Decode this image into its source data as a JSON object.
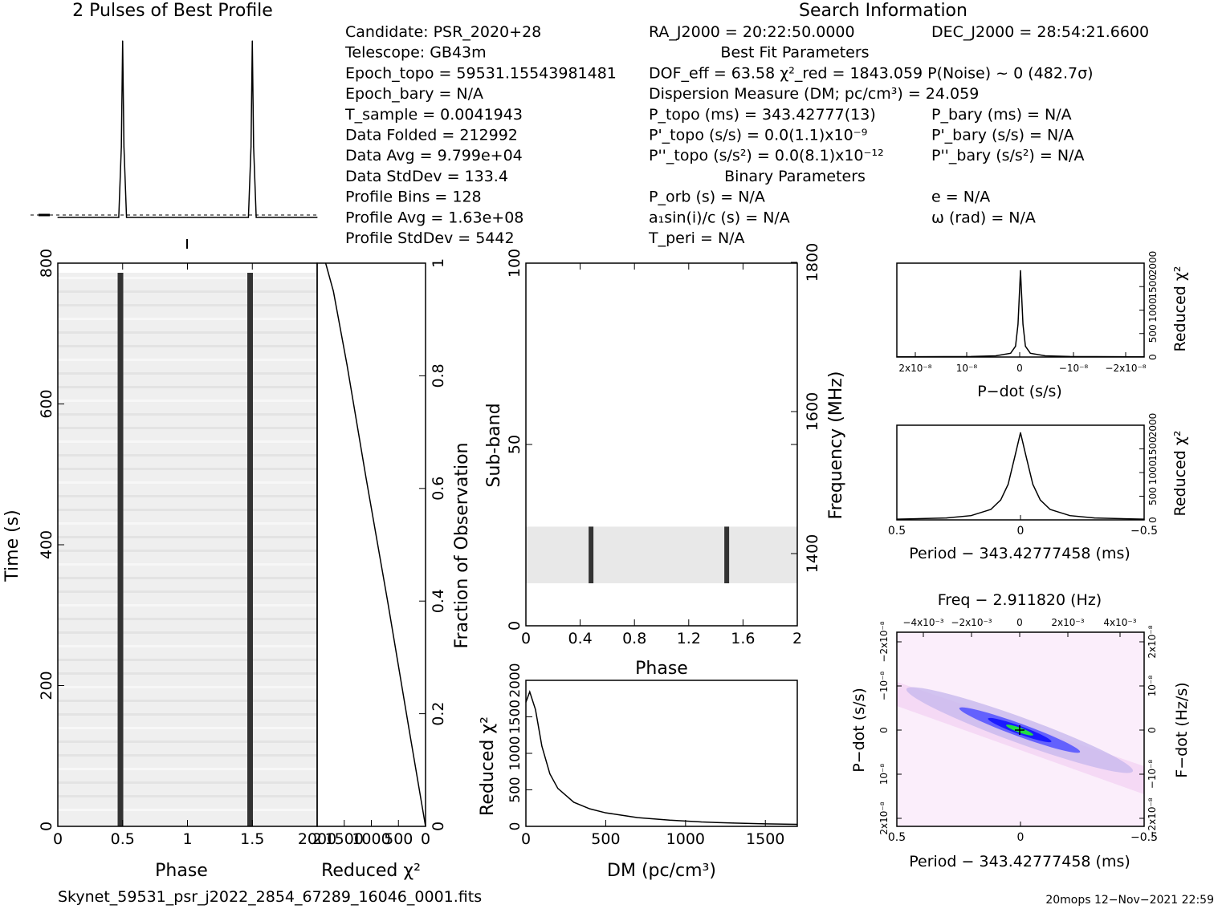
{
  "header": {
    "profile_title": "2 Pulses of Best Profile",
    "search_title": "Search Information",
    "filename": "Skynet_59531_psr_j2022_2854_67289_16046_0001.fits",
    "footer_right": "20mops  12−Nov−2021 22:59"
  },
  "info_rows": [
    [
      "Candidate:  PSR_2020+28",
      "RA_J2000 = 20:22:50.0000",
      "DEC_J2000 = 28:54:21.6600"
    ],
    [
      "Telescope:  GB43m",
      "Best Fit Parameters",
      ""
    ],
    [
      "Epoch_topo = 59531.15543981481",
      "DOF_eff = 63.58  χ²_red = 1843.059  P(Noise) ~ 0  (482.7σ)",
      ""
    ],
    [
      "Epoch_bary = N/A",
      "Dispersion Measure (DM; pc/cm³) = 24.059",
      ""
    ],
    [
      "T_sample  =  0.0041943",
      "P_topo (ms) =  343.42777(13)",
      "P_bary (ms) = N/A"
    ],
    [
      "Data Folded  =  212992",
      "P'_topo (s/s) = 0.0(1.1)x10⁻⁹",
      "P'_bary (s/s) = N/A"
    ],
    [
      "Data Avg  =  9.799e+04",
      "P''_topo (s/s²) = 0.0(8.1)x10⁻¹²",
      "P''_bary (s/s²) = N/A"
    ],
    [
      "Data StdDev  =  133.4",
      "Binary Parameters",
      ""
    ],
    [
      "Profile Bins  =  128",
      "P_orb (s) = N/A",
      "e = N/A"
    ],
    [
      "Profile Avg  =  1.63e+08",
      "a₁sin(i)/c (s) = N/A",
      "ω (rad) = N/A"
    ],
    [
      "Profile StdDev =  5442",
      "T_peri = N/A",
      ""
    ]
  ],
  "chart_data": [
    {
      "type": "line",
      "title": "2 Pulses of Best Profile",
      "x": [
        0,
        0.47,
        0.49,
        0.5,
        0.51,
        0.53,
        1.0,
        1.47,
        1.49,
        1.5,
        1.51,
        1.53,
        2.0
      ],
      "values": [
        0,
        0,
        0.4,
        1.0,
        0.4,
        0,
        0,
        0,
        0.4,
        1.0,
        0.4,
        0,
        0
      ],
      "xlim": [
        0,
        2
      ],
      "ylim": [
        -0.05,
        1.05
      ]
    },
    {
      "type": "heatmap",
      "title": "",
      "xlabel": "Phase",
      "ylabel": "Time (s)",
      "xlim": [
        0,
        2
      ],
      "ylim": [
        0,
        900
      ],
      "xticks": [
        "0",
        "0.5",
        "1",
        "1.5",
        "2"
      ],
      "yticks": [
        "0",
        "200",
        "400",
        "600",
        "800"
      ],
      "pulse_phases": [
        0.48,
        1.48
      ]
    },
    {
      "type": "line",
      "xlabel": "Reduced χ²",
      "ylabel": "Fraction of Observation",
      "xlim": [
        2000,
        0
      ],
      "ylim": [
        0,
        1
      ],
      "xticks": [
        "2000",
        "1500",
        "1000",
        "500",
        "0"
      ],
      "yticks": [
        "0",
        "0.2",
        "0.4",
        "0.6",
        "0.8",
        "1"
      ],
      "x": [
        1843,
        1700,
        1450,
        1100,
        700,
        300,
        0
      ],
      "values": [
        1.0,
        0.95,
        0.82,
        0.62,
        0.4,
        0.17,
        0
      ]
    },
    {
      "type": "heatmap",
      "xlabel": "Phase",
      "ylabel": "Sub-band",
      "y2label": "Frequency (MHz)",
      "xlim": [
        0,
        2
      ],
      "ylim": [
        0,
        128
      ],
      "xticks": [
        "0",
        "0.4",
        "0.8",
        "1.2",
        "1.6",
        "2"
      ],
      "yticks": [
        "0",
        "50",
        "100"
      ],
      "y2ticks": [
        "1400",
        "1600",
        "1800"
      ],
      "band_rows": [
        15,
        35
      ],
      "pulse_phases": [
        0.48,
        1.48
      ]
    },
    {
      "type": "line",
      "xlabel": "DM (pc/cm³)",
      "ylabel": "Reduced χ²",
      "xlim": [
        0,
        1700
      ],
      "ylim": [
        0,
        2000
      ],
      "xticks": [
        "0",
        "500",
        "1000",
        "1500"
      ],
      "yticks": [
        "0",
        "500",
        "1000",
        "1500",
        "2000"
      ],
      "x": [
        0,
        24,
        60,
        100,
        150,
        200,
        300,
        400,
        500,
        700,
        900,
        1100,
        1300,
        1500,
        1700
      ],
      "values": [
        1700,
        1843,
        1600,
        1100,
        720,
        520,
        330,
        240,
        185,
        120,
        85,
        60,
        45,
        35,
        28
      ]
    },
    {
      "type": "line",
      "xlabel": "P−dot (s/s)",
      "ylabel": "Reduced χ²",
      "xlim": [
        2.5e-08,
        -2.5e-08
      ],
      "ylim": [
        0,
        2000
      ],
      "xticks": [
        "2x10⁻⁸",
        "10⁻⁸",
        "0",
        "−10⁻⁸",
        "−2x10⁻⁸"
      ],
      "yticks": [
        "0",
        "500",
        "1000",
        "1500",
        "2000"
      ],
      "x": [
        2.5e-08,
        1e-08,
        5e-09,
        2e-09,
        1e-09,
        5e-10,
        0,
        -5e-10,
        -1e-09,
        -2e-09,
        -5e-09,
        -1e-08,
        -2.5e-08
      ],
      "values": [
        5,
        10,
        25,
        80,
        230,
        700,
        1843,
        700,
        230,
        80,
        25,
        10,
        5
      ]
    },
    {
      "type": "line",
      "xlabel": "Period − 343.42777458 (ms)",
      "ylabel": "Reduced χ²",
      "xlim": [
        0.5,
        -0.5
      ],
      "ylim": [
        0,
        2000
      ],
      "xticks": [
        "0.5",
        "0",
        "−0.5"
      ],
      "yticks": [
        "0",
        "500",
        "1000",
        "1500",
        "2000"
      ],
      "x": [
        0.5,
        0.3,
        0.2,
        0.12,
        0.08,
        0.05,
        0.02,
        0,
        -0.02,
        -0.05,
        -0.08,
        -0.12,
        -0.2,
        -0.3,
        -0.5
      ],
      "values": [
        15,
        40,
        90,
        220,
        420,
        750,
        1400,
        1843,
        1400,
        750,
        420,
        220,
        90,
        40,
        15
      ]
    },
    {
      "type": "heatmap",
      "title": "Freq − 2.911820 (Hz)",
      "xlabel": "Period − 343.42777458 (ms)",
      "ylabel": "P−dot (s/s)",
      "y2label": "F−dot (Hz/s)",
      "xlim": [
        0.5,
        -0.5
      ],
      "ylim": [
        -2e-08,
        2e-08
      ],
      "xticks": [
        "0.5",
        "0",
        "−0.5"
      ],
      "yticks": [
        "2x10⁻⁸",
        "10⁻⁸",
        "0",
        "−10⁻⁸",
        "−2x10⁻⁸"
      ],
      "x2ticks": [
        "−4x10⁻³",
        "−2x10⁻³",
        "0",
        "2x10⁻³",
        "4x10⁻³"
      ],
      "y2ticks": [
        "2x10⁻⁸",
        "10⁻⁸",
        "0",
        "−10⁻⁸",
        "−2x10⁻⁸"
      ]
    }
  ],
  "colors": {
    "ink": "#000000",
    "heat_low": "#ffffff",
    "heat_high": "#000000",
    "pink": "#f5d9f5",
    "blue": "#1a1aff",
    "green": "#22dd44"
  }
}
